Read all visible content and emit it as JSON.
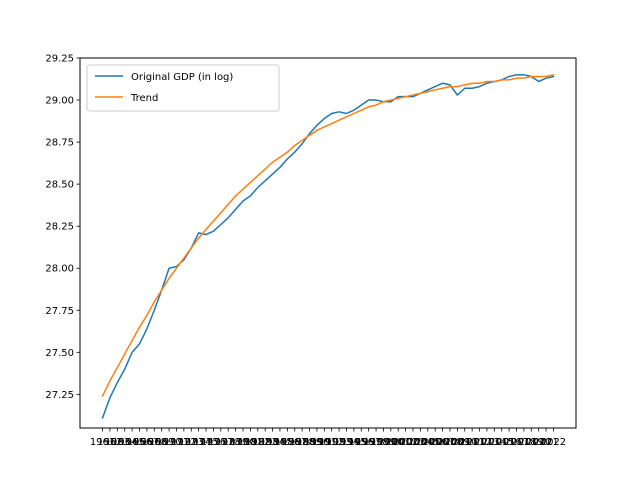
{
  "chart_data": {
    "type": "line",
    "title": "",
    "xlabel": "",
    "ylabel": "",
    "ylim": [
      27.05,
      29.25
    ],
    "yticks": [
      27.25,
      27.5,
      27.75,
      28.0,
      28.25,
      28.5,
      28.75,
      29.0,
      29.25
    ],
    "ytick_labels": [
      "27.25",
      "27.50",
      "27.75",
      "28.00",
      "28.25",
      "28.50",
      "28.75",
      "29.00",
      "29.25"
    ],
    "x": [
      1961,
      1962,
      1963,
      1964,
      1965,
      1966,
      1967,
      1968,
      1969,
      1970,
      1971,
      1972,
      1973,
      1974,
      1975,
      1976,
      1977,
      1978,
      1979,
      1980,
      1981,
      1982,
      1983,
      1984,
      1985,
      1986,
      1987,
      1988,
      1989,
      1990,
      1991,
      1992,
      1993,
      1994,
      1995,
      1996,
      1997,
      1998,
      1999,
      2000,
      2001,
      2002,
      2003,
      2004,
      2005,
      2006,
      2007,
      2008,
      2009,
      2010,
      2011,
      2012,
      2013,
      2014,
      2015,
      2016,
      2017,
      2018,
      2019,
      2020,
      2021,
      2022
    ],
    "xtick_labels": [
      "1961",
      "1962",
      "1963",
      "1964",
      "1965",
      "1966",
      "1967",
      "1968",
      "1969",
      "1970",
      "1971",
      "1972",
      "1973",
      "1974",
      "1975",
      "1976",
      "1977",
      "1978",
      "1979",
      "1980",
      "1981",
      "1982",
      "1983",
      "1984",
      "1985",
      "1986",
      "1987",
      "1988",
      "1989",
      "1990",
      "1991",
      "1992",
      "1993",
      "1994",
      "1995",
      "1996",
      "1997",
      "1998",
      "1999",
      "2000",
      "2001",
      "2002",
      "2003",
      "2004",
      "2005",
      "2006",
      "2007",
      "2008",
      "2009",
      "2010",
      "2011",
      "2012",
      "2013",
      "2014",
      "2015",
      "2016",
      "2017",
      "2018",
      "2019",
      "2020",
      "2021",
      "2022"
    ],
    "legend_position": "upper-left",
    "grid": false,
    "series": [
      {
        "name": "Original GDP (in log)",
        "color": "#1f77b4",
        "values": [
          27.11,
          27.23,
          27.32,
          27.4,
          27.5,
          27.55,
          27.64,
          27.75,
          27.87,
          28.0,
          28.01,
          28.05,
          28.12,
          28.21,
          28.2,
          28.22,
          28.26,
          28.3,
          28.35,
          28.4,
          28.43,
          28.48,
          28.52,
          28.56,
          28.6,
          28.65,
          28.69,
          28.74,
          28.8,
          28.85,
          28.89,
          28.92,
          28.93,
          28.92,
          28.94,
          28.97,
          29.0,
          29.0,
          28.99,
          28.99,
          29.02,
          29.02,
          29.02,
          29.04,
          29.06,
          29.08,
          29.1,
          29.09,
          29.03,
          29.07,
          29.07,
          29.08,
          29.1,
          29.11,
          29.12,
          29.14,
          29.15,
          29.15,
          29.14,
          29.11,
          29.13,
          29.14
        ]
      },
      {
        "name": "Trend",
        "color": "#ff7f0e",
        "values": [
          27.24,
          27.33,
          27.41,
          27.49,
          27.57,
          27.65,
          27.72,
          27.8,
          27.87,
          27.94,
          28.0,
          28.06,
          28.12,
          28.18,
          28.23,
          28.28,
          28.33,
          28.38,
          28.43,
          28.47,
          28.51,
          28.55,
          28.59,
          28.63,
          28.66,
          28.69,
          28.73,
          28.76,
          28.79,
          28.82,
          28.84,
          28.86,
          28.88,
          28.9,
          28.92,
          28.94,
          28.96,
          28.97,
          28.99,
          29.0,
          29.01,
          29.02,
          29.03,
          29.04,
          29.05,
          29.06,
          29.07,
          29.08,
          29.08,
          29.09,
          29.1,
          29.1,
          29.11,
          29.11,
          29.12,
          29.12,
          29.13,
          29.13,
          29.14,
          29.14,
          29.14,
          29.15
        ]
      }
    ]
  }
}
